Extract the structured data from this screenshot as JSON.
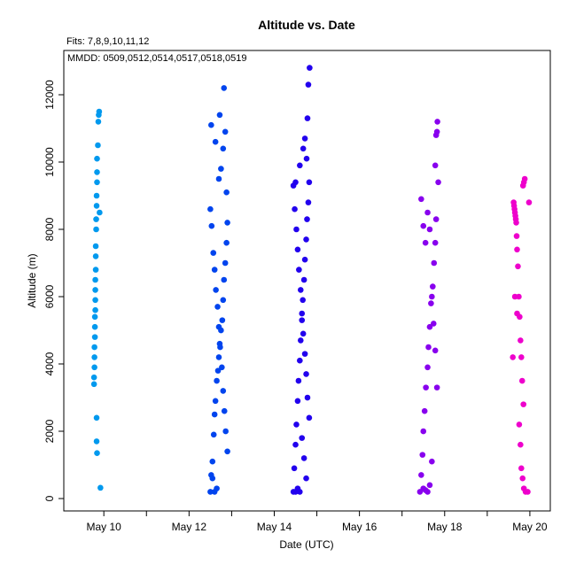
{
  "chart_data": {
    "type": "scatter",
    "title": "Altitude  vs. Date",
    "subtitle": "Fits: 7,8,9,10,11,12",
    "annotation": "MMDD: 0509,0512,0514,0517,0518,0519",
    "xlabel": "Date (UTC)",
    "ylabel": "Altitude (m)",
    "xlim": [
      9.06,
      20.48
    ],
    "ylim": [
      -368,
      13316
    ],
    "xticks": [
      {
        "value": 10,
        "label": "May 10"
      },
      {
        "value": 12,
        "label": "May 12"
      },
      {
        "value": 14,
        "label": "May 14"
      },
      {
        "value": 16,
        "label": "May 16"
      },
      {
        "value": 18,
        "label": "May 18"
      },
      {
        "value": 20,
        "label": "May 20"
      }
    ],
    "xminorticks": [
      11,
      13,
      15,
      17,
      19
    ],
    "yticks": [
      0,
      2000,
      4000,
      6000,
      8000,
      10000,
      12000
    ],
    "series": [
      {
        "color": "#0099ee",
        "x": [
          9.77,
          9.77,
          9.78,
          9.78,
          9.78,
          9.79,
          9.79,
          9.79,
          9.8,
          9.8,
          9.8,
          9.8,
          9.81,
          9.81,
          9.81,
          9.82,
          9.82,
          9.83,
          9.83,
          9.84,
          9.84,
          9.84,
          9.86,
          9.87,
          9.88,
          9.89,
          9.9,
          9.83,
          9.83,
          9.84,
          9.92
        ],
        "values": [
          3400,
          3600,
          3900,
          4200,
          4500,
          4800,
          5100,
          5400,
          5600,
          5900,
          6200,
          6500,
          6800,
          7200,
          7500,
          8000,
          8300,
          8700,
          9000,
          9400,
          9700,
          10100,
          10500,
          11200,
          11400,
          11500,
          8500,
          2400,
          1700,
          1350,
          320
        ]
      },
      {
        "color": "#0044ee",
        "x": [
          12.5,
          12.52,
          12.55,
          12.58,
          12.6,
          12.62,
          12.65,
          12.68,
          12.7,
          12.72,
          12.75,
          12.78,
          12.8,
          12.82,
          12.85,
          12.88,
          12.9,
          12.5,
          12.53,
          12.57,
          12.6,
          12.63,
          12.67,
          12.7,
          12.73,
          12.77,
          12.8,
          12.83,
          12.86,
          12.9,
          12.55,
          12.6,
          12.65,
          12.7,
          12.75,
          12.8,
          12.85,
          12.52,
          12.62,
          12.72,
          12.82,
          12.88
        ],
        "values": [
          200,
          700,
          1100,
          1900,
          2500,
          2900,
          3500,
          3800,
          4200,
          4600,
          5000,
          5300,
          5900,
          6500,
          7000,
          7600,
          8200,
          8600,
          8100,
          7300,
          6800,
          6200,
          5700,
          5100,
          4500,
          3900,
          3200,
          2600,
          2000,
          1400,
          600,
          200,
          300,
          9500,
          9800,
          10400,
          10900,
          11100,
          10600,
          11400,
          12200,
          9100
        ],
        "fixed": null
      },
      {
        "color": "#2200ee",
        "x": [
          14.45,
          14.47,
          14.5,
          14.52,
          14.55,
          14.57,
          14.6,
          14.62,
          14.65,
          14.67,
          14.7,
          14.72,
          14.75,
          14.77,
          14.8,
          14.82,
          14.45,
          14.48,
          14.52,
          14.55,
          14.58,
          14.62,
          14.65,
          14.68,
          14.72,
          14.75,
          14.78,
          14.82,
          14.5,
          14.55,
          14.6,
          14.65,
          14.7,
          14.75,
          14.5,
          14.6,
          14.68,
          14.72,
          14.76,
          14.78,
          14.8,
          14.83
        ],
        "values": [
          200,
          900,
          1600,
          2200,
          2900,
          3500,
          4100,
          4700,
          5300,
          5900,
          6500,
          7100,
          7700,
          8300,
          8800,
          9400,
          9300,
          8600,
          8000,
          7400,
          6800,
          6200,
          5500,
          4900,
          4300,
          3700,
          3000,
          2400,
          200,
          300,
          200,
          1800,
          1200,
          600,
          9400,
          9900,
          10400,
          10700,
          10100,
          11300,
          12300,
          12800
        ]
      },
      {
        "color": "#8800ee",
        "x": [
          17.42,
          17.45,
          17.48,
          17.5,
          17.53,
          17.56,
          17.6,
          17.62,
          17.65,
          17.68,
          17.72,
          17.75,
          17.78,
          17.8,
          17.45,
          17.5,
          17.55,
          17.6,
          17.65,
          17.7,
          17.74,
          17.78,
          17.82,
          17.5,
          17.55,
          17.6,
          17.65,
          17.7,
          17.78,
          17.8,
          17.82,
          17.83,
          17.85
        ],
        "values": [
          200,
          700,
          1300,
          2000,
          2600,
          3300,
          3900,
          4500,
          5100,
          5800,
          6300,
          7000,
          7600,
          8300,
          8900,
          8100,
          7600,
          8500,
          8000,
          6000,
          5200,
          4400,
          3300,
          300,
          250,
          200,
          400,
          1100,
          9900,
          10800,
          10900,
          11200,
          9400
        ]
      },
      {
        "color": "#ee00cc",
        "x": [
          19.62,
          19.63,
          19.64,
          19.65,
          19.66,
          19.67,
          19.68,
          19.69,
          19.7,
          19.72,
          19.74,
          19.76,
          19.78,
          19.8,
          19.82,
          19.85,
          19.6,
          19.65,
          19.7,
          19.75,
          19.78,
          19.8,
          19.83,
          19.86,
          19.9,
          19.95,
          19.98,
          19.84,
          19.86,
          19.88
        ],
        "values": [
          8800,
          8700,
          8600,
          8500,
          8400,
          8300,
          8200,
          7800,
          7400,
          6900,
          6000,
          5400,
          4700,
          4200,
          3500,
          2800,
          4200,
          6000,
          5500,
          2200,
          1600,
          900,
          600,
          300,
          200,
          200,
          8800,
          9300,
          9400,
          9500
        ]
      }
    ]
  }
}
